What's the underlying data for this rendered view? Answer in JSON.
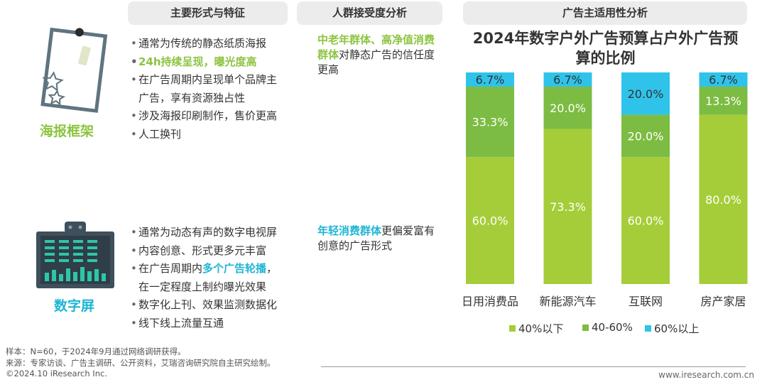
{
  "headers": {
    "features": "主要形式与特征",
    "audience": "人群接受度分析",
    "fit": "广告主适用性分析"
  },
  "poster": {
    "name": "海报框架",
    "features": [
      {
        "text": "通常为传统的静态纸质海报",
        "style": "normal"
      },
      {
        "text": "24h持续呈现，曝光度高",
        "style": "green"
      },
      {
        "text": "在广告周期内呈现单个品牌主",
        "style": "normal"
      },
      {
        "text": "广告，享有资源独占性",
        "style": "cont"
      },
      {
        "text": "涉及海报印刷制作，售价更高",
        "style": "normal"
      },
      {
        "text": "人工换刊",
        "style": "normal"
      }
    ],
    "audience_highlight": "中老年群体、高净值消费群体",
    "audience_rest": "对静态广告的信任度更高"
  },
  "screen": {
    "name": "数字屏",
    "features": [
      {
        "pre": "通常为动态有声的数字电视屏",
        "hl": "",
        "post": "",
        "cont": false
      },
      {
        "pre": "内容创意、形式更多元丰富",
        "hl": "",
        "post": "",
        "cont": false
      },
      {
        "pre": "在广告周期内",
        "hl": "多个广告轮播",
        "post": "，",
        "cont": false
      },
      {
        "pre": "在一定程度上制约曝光效果",
        "hl": "",
        "post": "",
        "cont": true
      },
      {
        "pre": "数字化上刊、效果监测数据化",
        "hl": "",
        "post": "",
        "cont": false
      },
      {
        "pre": "线下线上流量互通",
        "hl": "",
        "post": "",
        "cont": false
      }
    ],
    "audience_highlight": "年轻消费群体",
    "audience_rest": "更偏爱富有创意的广告形式"
  },
  "chart_data": {
    "type": "bar",
    "stacked": true,
    "title": "2024年数字户外广告预算占户外广告预算的比例",
    "categories": [
      "日用消费品",
      "新能源汽车",
      "互联网",
      "房产家居"
    ],
    "series": [
      {
        "name": "40%以下",
        "color": "#a5cd39",
        "values": [
          60.0,
          73.3,
          60.0,
          80.0
        ]
      },
      {
        "name": "40-60%",
        "color": "#7cbc43",
        "values": [
          33.3,
          20.0,
          20.0,
          13.3
        ]
      },
      {
        "name": "60%以上",
        "color": "#2fc3ea",
        "values": [
          6.7,
          6.7,
          20.0,
          6.7
        ]
      }
    ],
    "labels": [
      [
        "60.0%",
        "73.3%",
        "60.0%",
        "80.0%"
      ],
      [
        "33.3%",
        "20.0%",
        "20.0%",
        "13.3%"
      ],
      [
        "6.7%",
        "6.7%",
        "20.0%",
        "6.7%"
      ]
    ],
    "ylim": [
      0,
      100
    ],
    "legend_position": "bottom"
  },
  "footer": {
    "sample": "样本：N=60，于2024年9月通过网络调研获得。",
    "source": "来源：专家访谈、广告主调研、公开资料，艾瑞咨询研究院自主研究绘制。",
    "copyright": "©2024.10 iResearch Inc.",
    "website": "www.iresearch.com.cn"
  }
}
